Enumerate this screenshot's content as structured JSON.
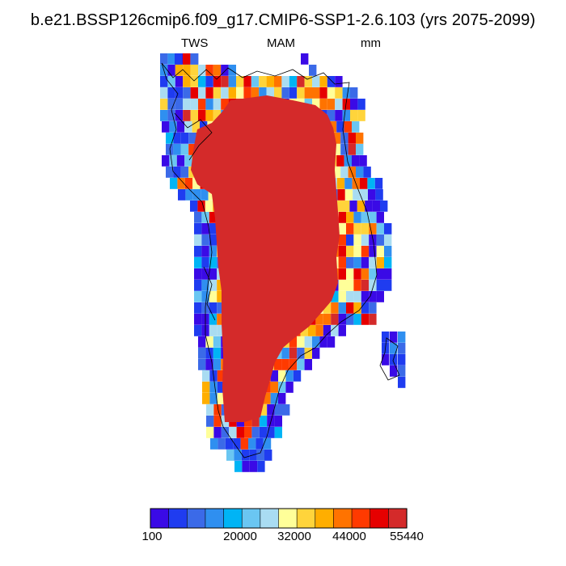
{
  "title": "b.e21.BSSP126cmip6.f09_g17.CMIP6-SSP1-2.6.103 (yrs 2075-2099)",
  "subtitle_left": "TWS",
  "subtitle_center": "MAM",
  "subtitle_right": "mm",
  "colorbar": {
    "colors": [
      "#3a0ae6",
      "#1f3cf0",
      "#3b6ae8",
      "#2f8ff0",
      "#00b4f5",
      "#6ac6f2",
      "#a9dcf2",
      "#ffff99",
      "#ffd43b",
      "#ffae00",
      "#ff7300",
      "#ff3a00",
      "#e60000",
      "#d42a2a"
    ],
    "labels": [
      "100",
      "20000",
      "32000",
      "44000",
      "55440"
    ]
  }
}
